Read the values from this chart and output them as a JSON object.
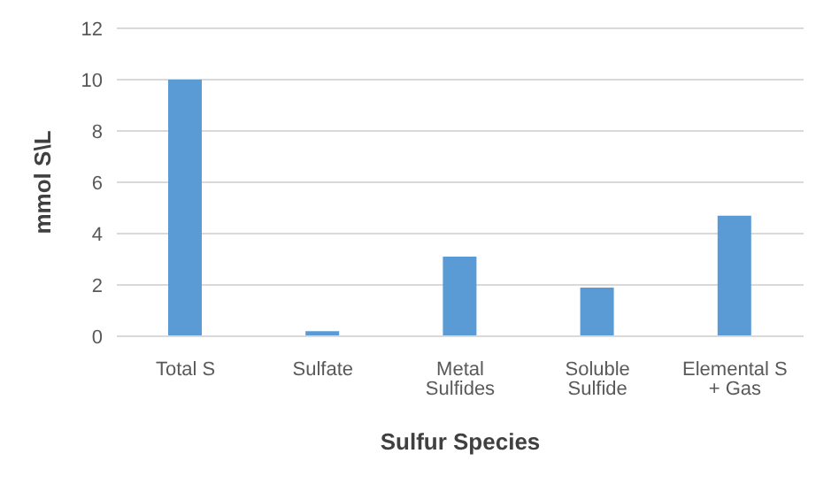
{
  "chart_data": {
    "type": "bar",
    "xlabel": "Sulfur Species",
    "ylabel": "mmol S\\L",
    "categories": [
      "Total S",
      "Sulfate",
      "Metal Sulfides",
      "Soluble Sulfide",
      "Elemental S + Gas"
    ],
    "values": [
      10,
      0.2,
      3.1,
      1.9,
      4.7
    ],
    "color": "#5b9bd5",
    "ylim": [
      0,
      12
    ],
    "yticks": [
      0,
      2,
      4,
      6,
      8,
      10,
      12
    ],
    "grid": "y"
  }
}
